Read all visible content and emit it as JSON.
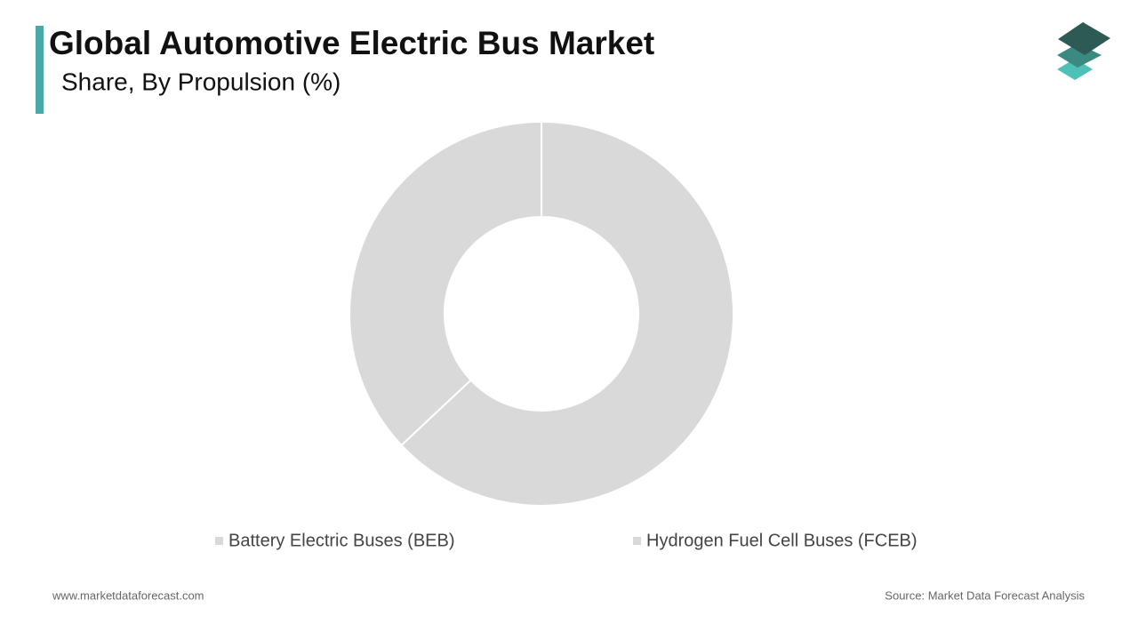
{
  "chart_data": {
    "type": "donut",
    "title": "Global Automotive Electric Bus Market",
    "subtitle": "Share, By Propulsion  (%)",
    "categories": [
      "Battery Electric Buses (BEB)",
      "Hydrogen Fuel Cell Buses (FCEB)"
    ],
    "values": [
      63,
      37
    ],
    "colors": [
      "#d9d9d9",
      "#d9d9d9"
    ]
  },
  "footer": {
    "website": "www.marketdataforecast.com",
    "source": "Source: Market Data Forecast Analysis"
  }
}
